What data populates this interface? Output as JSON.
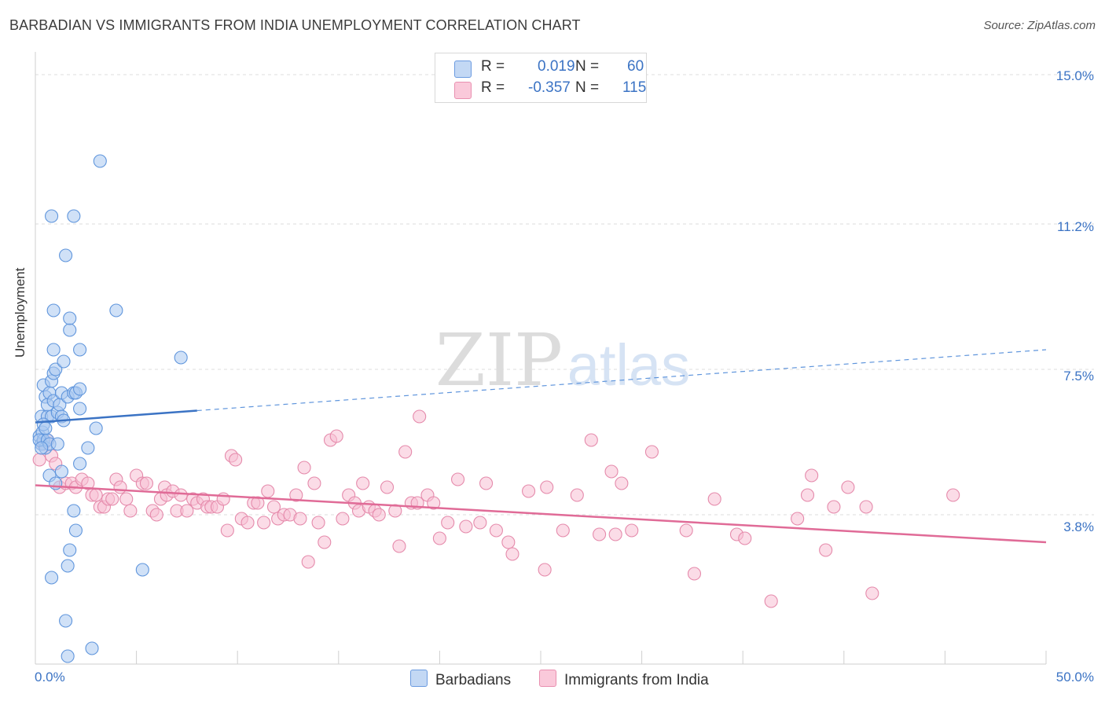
{
  "title": "BARBADIAN VS IMMIGRANTS FROM INDIA UNEMPLOYMENT CORRELATION CHART",
  "source": "Source: ZipAtlas.com",
  "legend": [
    {
      "r_label": "R =",
      "r_value": "0.019",
      "n_label": "N =",
      "n_value": "60",
      "color": "#a9c8f0",
      "border": "#5f95dc"
    },
    {
      "r_label": "R =",
      "r_value": "-0.357",
      "n_label": "N =",
      "n_value": "115",
      "color": "#f8c0d3",
      "border": "#e58aab"
    }
  ],
  "watermark": {
    "zip": "ZIP",
    "atlas": "atlas"
  },
  "chart_data": {
    "type": "scatter",
    "title": "BARBADIAN VS IMMIGRANTS FROM INDIA UNEMPLOYMENT CORRELATION CHART",
    "xlabel": "",
    "ylabel": "Unemployment",
    "xlim": [
      0,
      50
    ],
    "ylim": [
      0,
      15.5
    ],
    "x_tick_labels": [
      "0.0%",
      "50.0%"
    ],
    "y_ticks": [
      3.8,
      7.5,
      11.2,
      15.0
    ],
    "y_tick_labels": [
      "3.8%",
      "7.5%",
      "11.2%",
      "15.0%"
    ],
    "grid": "horizontal dashed",
    "legend_position": "top-center",
    "series": [
      {
        "name": "Barbadians",
        "color": "#5f95dc",
        "fill": "#a9c8f0",
        "trend": {
          "x0": 0,
          "y0": 6.15,
          "x1": 8,
          "y1": 6.45,
          "dashed_to_x": 50,
          "dashed_to_y": 8.0
        },
        "points": [
          [
            0.2,
            5.8
          ],
          [
            0.3,
            5.6
          ],
          [
            0.35,
            5.9
          ],
          [
            0.4,
            5.7
          ],
          [
            0.5,
            5.5
          ],
          [
            0.3,
            6.3
          ],
          [
            0.4,
            7.1
          ],
          [
            0.5,
            6.8
          ],
          [
            0.6,
            6.3
          ],
          [
            0.6,
            6.6
          ],
          [
            0.7,
            6.9
          ],
          [
            0.8,
            7.2
          ],
          [
            0.8,
            6.3
          ],
          [
            0.9,
            7.4
          ],
          [
            0.9,
            8.0
          ],
          [
            0.9,
            6.7
          ],
          [
            0.9,
            9.0
          ],
          [
            0.8,
            11.4
          ],
          [
            1.0,
            7.5
          ],
          [
            1.1,
            6.4
          ],
          [
            1.2,
            6.6
          ],
          [
            1.3,
            6.9
          ],
          [
            1.3,
            6.3
          ],
          [
            1.4,
            7.7
          ],
          [
            1.5,
            10.4
          ],
          [
            1.6,
            6.8
          ],
          [
            1.7,
            8.5
          ],
          [
            1.7,
            8.8
          ],
          [
            1.9,
            6.9
          ],
          [
            2.0,
            6.9
          ],
          [
            2.2,
            7.0
          ],
          [
            2.2,
            6.5
          ],
          [
            1.9,
            11.4
          ],
          [
            2.2,
            8.0
          ],
          [
            2.6,
            5.5
          ],
          [
            3.0,
            6.0
          ],
          [
            3.2,
            12.8
          ],
          [
            4.0,
            9.0
          ],
          [
            7.2,
            7.8
          ],
          [
            0.2,
            5.7
          ],
          [
            0.4,
            6.1
          ],
          [
            0.6,
            5.7
          ],
          [
            0.7,
            5.6
          ],
          [
            1.1,
            5.6
          ],
          [
            2.2,
            5.1
          ],
          [
            1.3,
            4.9
          ],
          [
            0.7,
            4.8
          ],
          [
            1.0,
            4.6
          ],
          [
            1.9,
            3.9
          ],
          [
            2.0,
            3.4
          ],
          [
            1.7,
            2.9
          ],
          [
            1.6,
            2.5
          ],
          [
            0.8,
            2.2
          ],
          [
            1.5,
            1.1
          ],
          [
            1.6,
            0.2
          ],
          [
            2.8,
            0.4
          ],
          [
            5.3,
            2.4
          ],
          [
            0.5,
            6.0
          ],
          [
            1.4,
            6.2
          ],
          [
            0.3,
            5.5
          ]
        ]
      },
      {
        "name": "Immigrants from India",
        "color": "#e58aab",
        "fill": "#f8c0d3",
        "trend": {
          "x0": 0,
          "y0": 4.55,
          "x1": 50,
          "y1": 3.1
        },
        "points": [
          [
            0.2,
            5.2
          ],
          [
            0.4,
            5.6
          ],
          [
            0.6,
            5.7
          ],
          [
            0.8,
            5.3
          ],
          [
            1.0,
            5.1
          ],
          [
            1.2,
            4.5
          ],
          [
            1.5,
            4.6
          ],
          [
            1.8,
            4.6
          ],
          [
            2.0,
            4.5
          ],
          [
            2.3,
            4.7
          ],
          [
            2.6,
            4.6
          ],
          [
            2.8,
            4.3
          ],
          [
            3.0,
            4.3
          ],
          [
            3.2,
            4.0
          ],
          [
            3.4,
            4.0
          ],
          [
            3.6,
            4.2
          ],
          [
            3.8,
            4.2
          ],
          [
            4.0,
            4.7
          ],
          [
            4.2,
            4.5
          ],
          [
            4.5,
            4.2
          ],
          [
            4.7,
            3.9
          ],
          [
            5.0,
            4.8
          ],
          [
            5.3,
            4.6
          ],
          [
            5.5,
            4.6
          ],
          [
            5.8,
            3.9
          ],
          [
            6.0,
            3.8
          ],
          [
            6.2,
            4.2
          ],
          [
            6.4,
            4.5
          ],
          [
            6.5,
            4.3
          ],
          [
            6.8,
            4.4
          ],
          [
            7.0,
            3.9
          ],
          [
            7.2,
            4.3
          ],
          [
            7.5,
            3.9
          ],
          [
            7.8,
            4.2
          ],
          [
            8.0,
            4.1
          ],
          [
            8.3,
            4.2
          ],
          [
            8.5,
            4.0
          ],
          [
            8.7,
            4.0
          ],
          [
            9.0,
            4.0
          ],
          [
            9.3,
            4.2
          ],
          [
            9.5,
            3.4
          ],
          [
            9.7,
            5.3
          ],
          [
            9.9,
            5.2
          ],
          [
            10.2,
            3.7
          ],
          [
            10.5,
            3.6
          ],
          [
            10.8,
            4.1
          ],
          [
            11.0,
            4.1
          ],
          [
            11.3,
            3.6
          ],
          [
            11.5,
            4.4
          ],
          [
            11.8,
            4.0
          ],
          [
            12.0,
            3.7
          ],
          [
            12.3,
            3.8
          ],
          [
            12.6,
            3.8
          ],
          [
            12.9,
            4.3
          ],
          [
            13.1,
            3.7
          ],
          [
            13.3,
            5.0
          ],
          [
            13.5,
            2.6
          ],
          [
            13.8,
            4.6
          ],
          [
            14.0,
            3.6
          ],
          [
            14.3,
            3.1
          ],
          [
            14.6,
            5.7
          ],
          [
            14.9,
            5.8
          ],
          [
            15.2,
            3.7
          ],
          [
            15.5,
            4.3
          ],
          [
            15.8,
            4.1
          ],
          [
            16.0,
            3.9
          ],
          [
            16.2,
            4.6
          ],
          [
            16.5,
            4.0
          ],
          [
            16.8,
            3.9
          ],
          [
            17.0,
            3.8
          ],
          [
            17.4,
            4.5
          ],
          [
            17.8,
            3.9
          ],
          [
            18.0,
            3.0
          ],
          [
            18.3,
            5.4
          ],
          [
            18.6,
            4.1
          ],
          [
            18.9,
            4.1
          ],
          [
            19.0,
            6.3
          ],
          [
            19.4,
            4.3
          ],
          [
            19.7,
            4.1
          ],
          [
            20.0,
            3.2
          ],
          [
            20.4,
            3.6
          ],
          [
            20.9,
            4.7
          ],
          [
            21.3,
            3.5
          ],
          [
            22.0,
            3.6
          ],
          [
            22.3,
            4.6
          ],
          [
            22.8,
            3.4
          ],
          [
            23.4,
            3.1
          ],
          [
            23.6,
            2.8
          ],
          [
            24.4,
            4.4
          ],
          [
            25.2,
            2.4
          ],
          [
            25.3,
            4.5
          ],
          [
            26.1,
            3.4
          ],
          [
            26.8,
            4.3
          ],
          [
            27.5,
            5.7
          ],
          [
            27.9,
            3.3
          ],
          [
            28.5,
            4.9
          ],
          [
            29.0,
            4.6
          ],
          [
            28.7,
            3.3
          ],
          [
            29.5,
            3.4
          ],
          [
            30.5,
            5.4
          ],
          [
            32.2,
            3.4
          ],
          [
            32.6,
            2.3
          ],
          [
            33.6,
            4.2
          ],
          [
            34.7,
            3.3
          ],
          [
            35.1,
            3.2
          ],
          [
            36.4,
            1.6
          ],
          [
            37.7,
            3.7
          ],
          [
            38.2,
            4.3
          ],
          [
            38.4,
            4.8
          ],
          [
            39.1,
            2.9
          ],
          [
            39.5,
            4.0
          ],
          [
            40.2,
            4.5
          ],
          [
            41.1,
            4.0
          ],
          [
            41.4,
            1.8
          ],
          [
            45.4,
            4.3
          ]
        ]
      }
    ]
  },
  "bottom_legend": [
    "Barbadians",
    "Immigrants from India"
  ]
}
